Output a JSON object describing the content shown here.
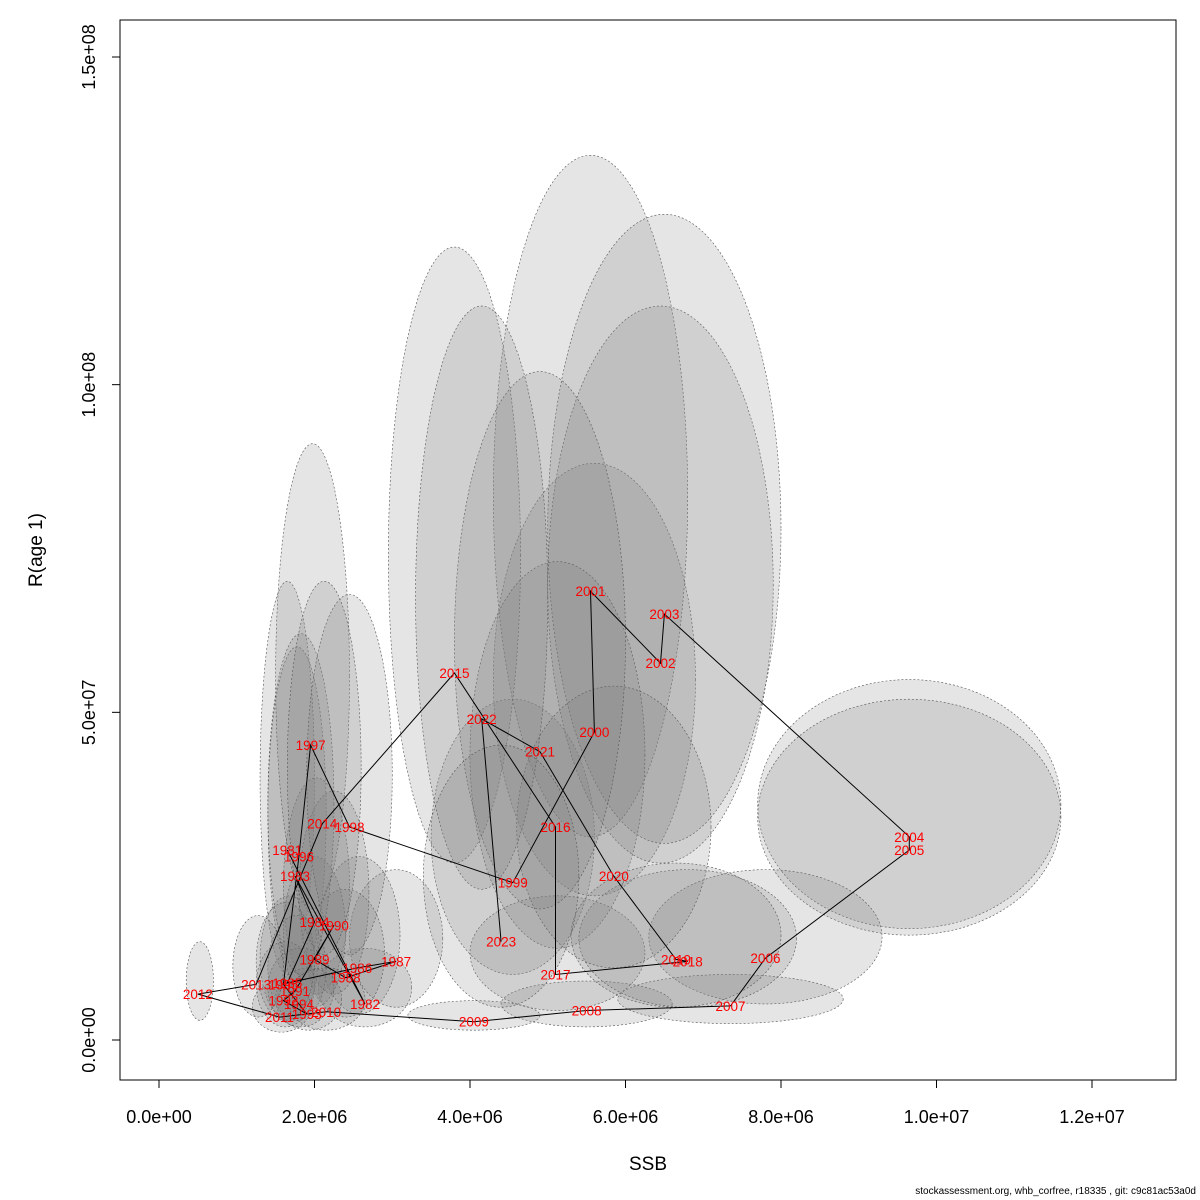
{
  "chart_data": {
    "type": "scatter",
    "title": "",
    "xlabel": "SSB",
    "ylabel": "R(age 1)",
    "xlim": [
      -250000,
      13000000
    ],
    "ylim": [
      -6000000,
      155000000
    ],
    "x_ticks": [
      0,
      2000000,
      4000000,
      6000000,
      8000000,
      10000000,
      12000000
    ],
    "x_tick_labels": [
      "0.0e+00",
      "2.0e+06",
      "4.0e+06",
      "6.0e+06",
      "8.0e+06",
      "1.0e+07",
      "1.2e+07"
    ],
    "y_ticks": [
      0,
      50000000,
      100000000,
      150000000
    ],
    "y_tick_labels": [
      "0.0e+00",
      "5.0e+07",
      "1.0e+08",
      "1.5e+08"
    ],
    "grid": false,
    "connected_in_year_order": true,
    "points": [
      {
        "year": "1981",
        "ssb": 1650000,
        "r": 29000000,
        "ssb_ci": [
          1300000,
          2000000
        ],
        "r_ci": [
          10000000,
          70000000
        ]
      },
      {
        "year": "1982",
        "ssb": 2650000,
        "r": 5500000,
        "ssb_ci": [
          2050000,
          3250000
        ],
        "r_ci": [
          2000000,
          14000000
        ]
      },
      {
        "year": "1983",
        "ssb": 1750000,
        "r": 25000000,
        "ssb_ci": [
          1400000,
          2150000
        ],
        "r_ci": [
          9000000,
          60000000
        ]
      },
      {
        "year": "1984",
        "ssb": 2000000,
        "r": 18000000,
        "ssb_ci": [
          1600000,
          2450000
        ],
        "r_ci": [
          7000000,
          40000000
        ]
      },
      {
        "year": "1985",
        "ssb": 1650000,
        "r": 8700000,
        "ssb_ci": [
          1300000,
          2050000
        ],
        "r_ci": [
          3000000,
          22000000
        ]
      },
      {
        "year": "1986",
        "ssb": 2550000,
        "r": 11000000,
        "ssb_ci": [
          2050000,
          3100000
        ],
        "r_ci": [
          4000000,
          28000000
        ]
      },
      {
        "year": "1987",
        "ssb": 3050000,
        "r": 12000000,
        "ssb_ci": [
          2450000,
          3650000
        ],
        "r_ci": [
          5000000,
          26000000
        ]
      },
      {
        "year": "1988",
        "ssb": 2400000,
        "r": 9500000,
        "ssb_ci": [
          1900000,
          2900000
        ],
        "r_ci": [
          3500000,
          23000000
        ]
      },
      {
        "year": "1989",
        "ssb": 2000000,
        "r": 12300000,
        "ssb_ci": [
          1600000,
          2400000
        ],
        "r_ci": [
          5000000,
          28000000
        ]
      },
      {
        "year": "1990",
        "ssb": 2250000,
        "r": 17500000,
        "ssb_ci": [
          1800000,
          2700000
        ],
        "r_ci": [
          7000000,
          38000000
        ]
      },
      {
        "year": "1991",
        "ssb": 1750000,
        "r": 7500000,
        "ssb_ci": [
          1400000,
          2150000
        ],
        "r_ci": [
          3000000,
          19000000
        ]
      },
      {
        "year": "1992",
        "ssb": 1600000,
        "r": 6000000,
        "ssb_ci": [
          1250000,
          2000000
        ],
        "r_ci": [
          2000000,
          15000000
        ]
      },
      {
        "year": "1993",
        "ssb": 1900000,
        "r": 4000000,
        "ssb_ci": [
          1500000,
          2350000
        ],
        "r_ci": [
          1500000,
          11000000
        ]
      },
      {
        "year": "1994",
        "ssb": 1800000,
        "r": 5500000,
        "ssb_ci": [
          1400000,
          2250000
        ],
        "r_ci": [
          2000000,
          14000000
        ]
      },
      {
        "year": "1995",
        "ssb": 1600000,
        "r": 8500000,
        "ssb_ci": [
          1250000,
          2000000
        ],
        "r_ci": [
          3000000,
          21000000
        ]
      },
      {
        "year": "1996",
        "ssb": 1800000,
        "r": 28000000,
        "ssb_ci": [
          1400000,
          2250000
        ],
        "r_ci": [
          10000000,
          62000000
        ]
      },
      {
        "year": "1997",
        "ssb": 1950000,
        "r": 45000000,
        "ssb_ci": [
          1500000,
          2450000
        ],
        "r_ci": [
          20000000,
          91000000
        ]
      },
      {
        "year": "1998",
        "ssb": 2450000,
        "r": 32500000,
        "ssb_ci": [
          1900000,
          3000000
        ],
        "r_ci": [
          13000000,
          68000000
        ]
      },
      {
        "year": "1999",
        "ssb": 4550000,
        "r": 24000000,
        "ssb_ci": [
          3500000,
          5600000
        ],
        "r_ci": [
          10000000,
          52000000
        ]
      },
      {
        "year": "2000",
        "ssb": 5600000,
        "r": 47000000,
        "ssb_ci": [
          4300000,
          6900000
        ],
        "r_ci": [
          22000000,
          88000000
        ]
      },
      {
        "year": "2001",
        "ssb": 5550000,
        "r": 68500000,
        "ssb_ci": [
          4300000,
          6800000
        ],
        "r_ci": [
          31000000,
          135000000
        ]
      },
      {
        "year": "2002",
        "ssb": 6450000,
        "r": 57500000,
        "ssb_ci": [
          5000000,
          7900000
        ],
        "r_ci": [
          27000000,
          112000000
        ]
      },
      {
        "year": "2003",
        "ssb": 6500000,
        "r": 65000000,
        "ssb_ci": [
          5000000,
          8000000
        ],
        "r_ci": [
          30000000,
          126000000
        ]
      },
      {
        "year": "2004",
        "ssb": 9650000,
        "r": 31000000,
        "ssb_ci": [
          7700000,
          11600000
        ],
        "r_ci": [
          17000000,
          55000000
        ]
      },
      {
        "year": "2005",
        "ssb": 9650000,
        "r": 29000000,
        "ssb_ci": [
          7700000,
          11600000
        ],
        "r_ci": [
          16000000,
          52000000
        ]
      },
      {
        "year": "2006",
        "ssb": 7800000,
        "r": 12500000,
        "ssb_ci": [
          6300000,
          9300000
        ],
        "r_ci": [
          5500000,
          26000000
        ]
      },
      {
        "year": "2007",
        "ssb": 7350000,
        "r": 5200000,
        "ssb_ci": [
          5900000,
          8800000
        ],
        "r_ci": [
          2500000,
          10000000
        ]
      },
      {
        "year": "2008",
        "ssb": 5500000,
        "r": 4500000,
        "ssb_ci": [
          4400000,
          6600000
        ],
        "r_ci": [
          2000000,
          9000000
        ]
      },
      {
        "year": "2009",
        "ssb": 4050000,
        "r": 2800000,
        "ssb_ci": [
          3200000,
          4900000
        ],
        "r_ci": [
          1500000,
          6000000
        ]
      },
      {
        "year": "2010",
        "ssb": 2150000,
        "r": 4300000,
        "ssb_ci": [
          1650000,
          2650000
        ],
        "r_ci": [
          1500000,
          11000000
        ]
      },
      {
        "year": "2011",
        "ssb": 1550000,
        "r": 3500000,
        "ssb_ci": [
          1200000,
          1950000
        ],
        "r_ci": [
          1200000,
          9000000
        ]
      },
      {
        "year": "2012",
        "ssb": 500000,
        "r": 7000000,
        "ssb_ci": [
          350000,
          700000
        ],
        "r_ci": [
          3000000,
          15000000
        ]
      },
      {
        "year": "2013",
        "ssb": 1250000,
        "r": 8500000,
        "ssb_ci": [
          950000,
          1600000
        ],
        "r_ci": [
          3500000,
          19000000
        ]
      },
      {
        "year": "2014",
        "ssb": 2100000,
        "r": 33000000,
        "ssb_ci": [
          1650000,
          2600000
        ],
        "r_ci": [
          13000000,
          70000000
        ]
      },
      {
        "year": "2015",
        "ssb": 3800000,
        "r": 56000000,
        "ssb_ci": [
          2950000,
          4650000
        ],
        "r_ci": [
          27000000,
          121000000
        ]
      },
      {
        "year": "2016",
        "ssb": 5100000,
        "r": 32500000,
        "ssb_ci": [
          4000000,
          6250000
        ],
        "r_ci": [
          14000000,
          73000000
        ]
      },
      {
        "year": "2017",
        "ssb": 5100000,
        "r": 10000000,
        "ssb_ci": [
          4000000,
          6250000
        ],
        "r_ci": [
          4500000,
          22000000
        ]
      },
      {
        "year": "2018",
        "ssb": 6800000,
        "r": 12000000,
        "ssb_ci": [
          5400000,
          8200000
        ],
        "r_ci": [
          5000000,
          26000000
        ]
      },
      {
        "year": "2019",
        "ssb": 6650000,
        "r": 12300000,
        "ssb_ci": [
          5300000,
          8000000
        ],
        "r_ci": [
          5000000,
          27000000
        ]
      },
      {
        "year": "2020",
        "ssb": 5850000,
        "r": 25000000,
        "ssb_ci": [
          4600000,
          7100000
        ],
        "r_ci": [
          11000000,
          54000000
        ]
      },
      {
        "year": "2021",
        "ssb": 4900000,
        "r": 44000000,
        "ssb_ci": [
          3800000,
          6000000
        ],
        "r_ci": [
          20000000,
          102000000
        ]
      },
      {
        "year": "2022",
        "ssb": 4150000,
        "r": 49000000,
        "ssb_ci": [
          3300000,
          5000000
        ],
        "r_ci": [
          23000000,
          112000000
        ]
      },
      {
        "year": "2023",
        "ssb": 4400000,
        "r": 15000000,
        "ssb_ci": [
          3400000,
          5400000
        ],
        "r_ci": [
          5000000,
          45000000
        ]
      }
    ],
    "ellipse_fill": "#7f7f7f",
    "ellipse_opacity": 0.2,
    "label_color": "#ff0000",
    "line_color": "#000000"
  },
  "footer_text": "stockassessment.org, whb_corfree, r18335 , git: c9c81ac53a0d"
}
